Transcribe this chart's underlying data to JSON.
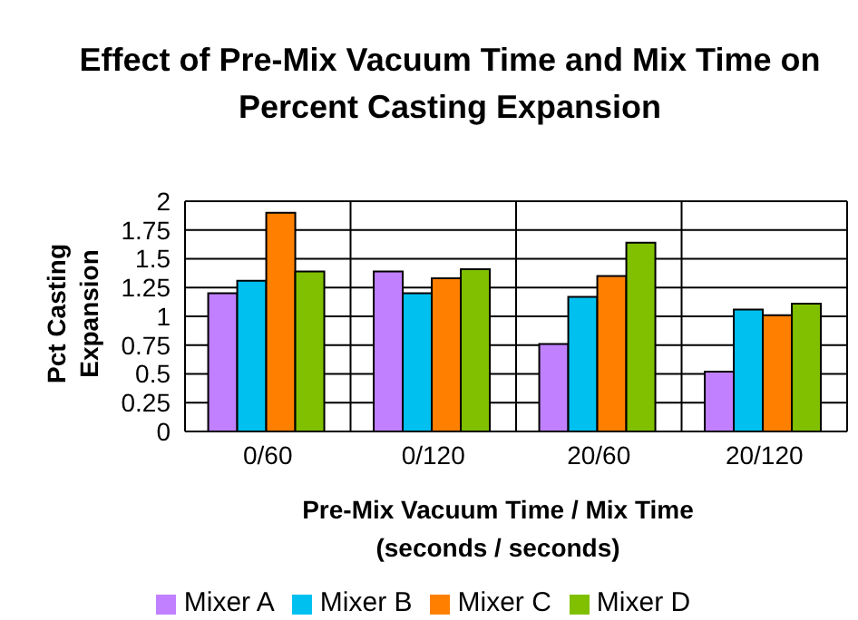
{
  "chart_data": {
    "type": "bar",
    "title": "Effect of Pre-Mix Vacuum Time and Mix Time on Percent Casting Expansion",
    "xlabel": "Pre-Mix Vacuum Time / Mix Time (seconds / seconds)",
    "ylabel": "Pct Casting Expansion",
    "categories": [
      "0/60",
      "0/120",
      "20/60",
      "20/120"
    ],
    "series": [
      {
        "name": "Mixer A",
        "color": "#c080ff",
        "values": [
          1.2,
          1.39,
          0.76,
          0.52
        ]
      },
      {
        "name": "Mixer B",
        "color": "#00c0f0",
        "values": [
          1.31,
          1.2,
          1.17,
          1.06
        ]
      },
      {
        "name": "Mixer C",
        "color": "#ff8000",
        "values": [
          1.9,
          1.33,
          1.35,
          1.01
        ]
      },
      {
        "name": "Mixer D",
        "color": "#80c000",
        "values": [
          1.39,
          1.41,
          1.64,
          1.11
        ]
      }
    ],
    "ylim": [
      0,
      2
    ],
    "yticks": [
      0,
      0.25,
      0.5,
      0.75,
      1,
      1.25,
      1.5,
      1.75,
      2
    ],
    "grid": true,
    "legend": "bottom"
  }
}
